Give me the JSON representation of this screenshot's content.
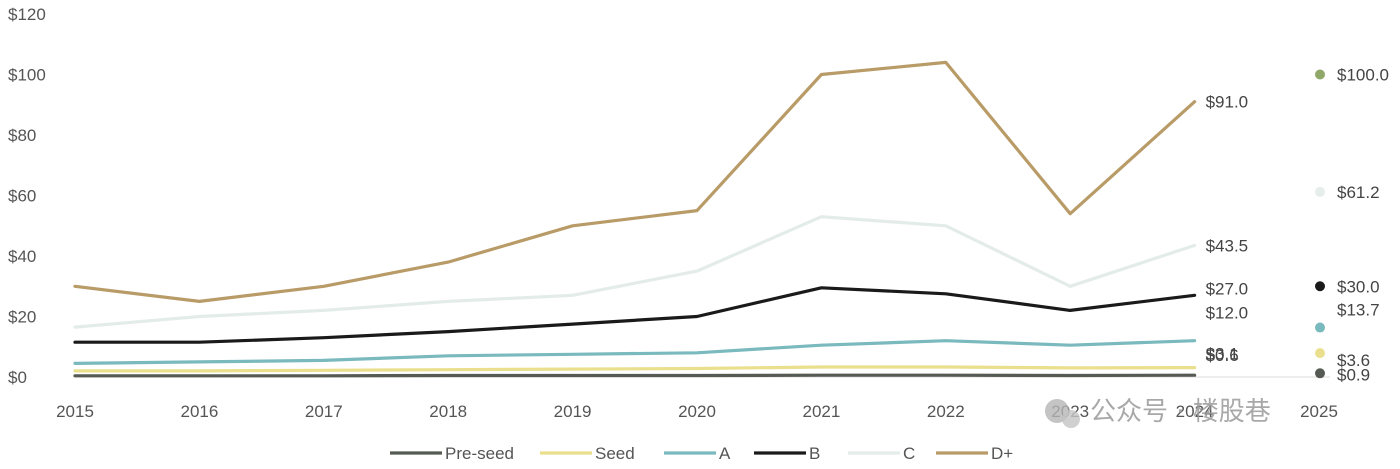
{
  "chart_data": {
    "type": "line",
    "title": "",
    "xlabel": "",
    "ylabel": "",
    "x": [
      "2015",
      "2016",
      "2017",
      "2018",
      "2019",
      "2020",
      "2021",
      "2022",
      "2023",
      "2024",
      "2025"
    ],
    "y_ticks": [
      "$120",
      "$100",
      "$80",
      "$60",
      "$40",
      "$20",
      "$0"
    ],
    "ylim": [
      0,
      120
    ],
    "grid": false,
    "legend_position": "bottom",
    "series": [
      {
        "name": "Pre-seed",
        "color": "#555a52",
        "values": [
          0.4,
          0.4,
          0.4,
          0.5,
          0.5,
          0.5,
          0.6,
          0.6,
          0.5,
          0.6,
          null
        ],
        "end_label": "$0.6",
        "forecast": 0.9,
        "forecast_label": "$0.9"
      },
      {
        "name": "Seed",
        "color": "#e9df8d",
        "values": [
          2.0,
          2.0,
          2.2,
          2.4,
          2.6,
          2.8,
          3.3,
          3.3,
          3.0,
          3.1,
          null
        ],
        "end_label": "$3.1",
        "forecast": 3.6,
        "forecast_label": "$3.6"
      },
      {
        "name": "A",
        "color": "#7ab9bd",
        "values": [
          4.5,
          5.0,
          5.5,
          7.0,
          7.5,
          8.0,
          10.5,
          12.0,
          10.5,
          12.0,
          null
        ],
        "end_label": "$12.0",
        "forecast": 13.7,
        "forecast_label": "$13.7"
      },
      {
        "name": "B",
        "color": "#1a1a1a",
        "values": [
          11.5,
          11.5,
          13.0,
          15.0,
          17.5,
          20.0,
          29.5,
          27.5,
          22.0,
          27.0,
          null
        ],
        "end_label": "$27.0",
        "forecast": 30.0,
        "forecast_label": "$30.0"
      },
      {
        "name": "C",
        "color": "#e4ece9",
        "values": [
          16.5,
          20.0,
          22.0,
          25.0,
          27.0,
          35.0,
          53.0,
          50.0,
          30.0,
          43.5,
          null
        ],
        "end_label": "$43.5",
        "forecast": 61.2,
        "forecast_label": "$61.2"
      },
      {
        "name": "D+",
        "color": "#b89b67",
        "values": [
          30.0,
          25.0,
          30.0,
          38.0,
          50.0,
          55.0,
          100.0,
          104.0,
          54.0,
          91.0,
          null
        ],
        "end_label": "$91.0",
        "forecast": 100.0,
        "forecast_label": "$100.0"
      }
    ],
    "watermark": "公众号 · 楼股巷"
  }
}
